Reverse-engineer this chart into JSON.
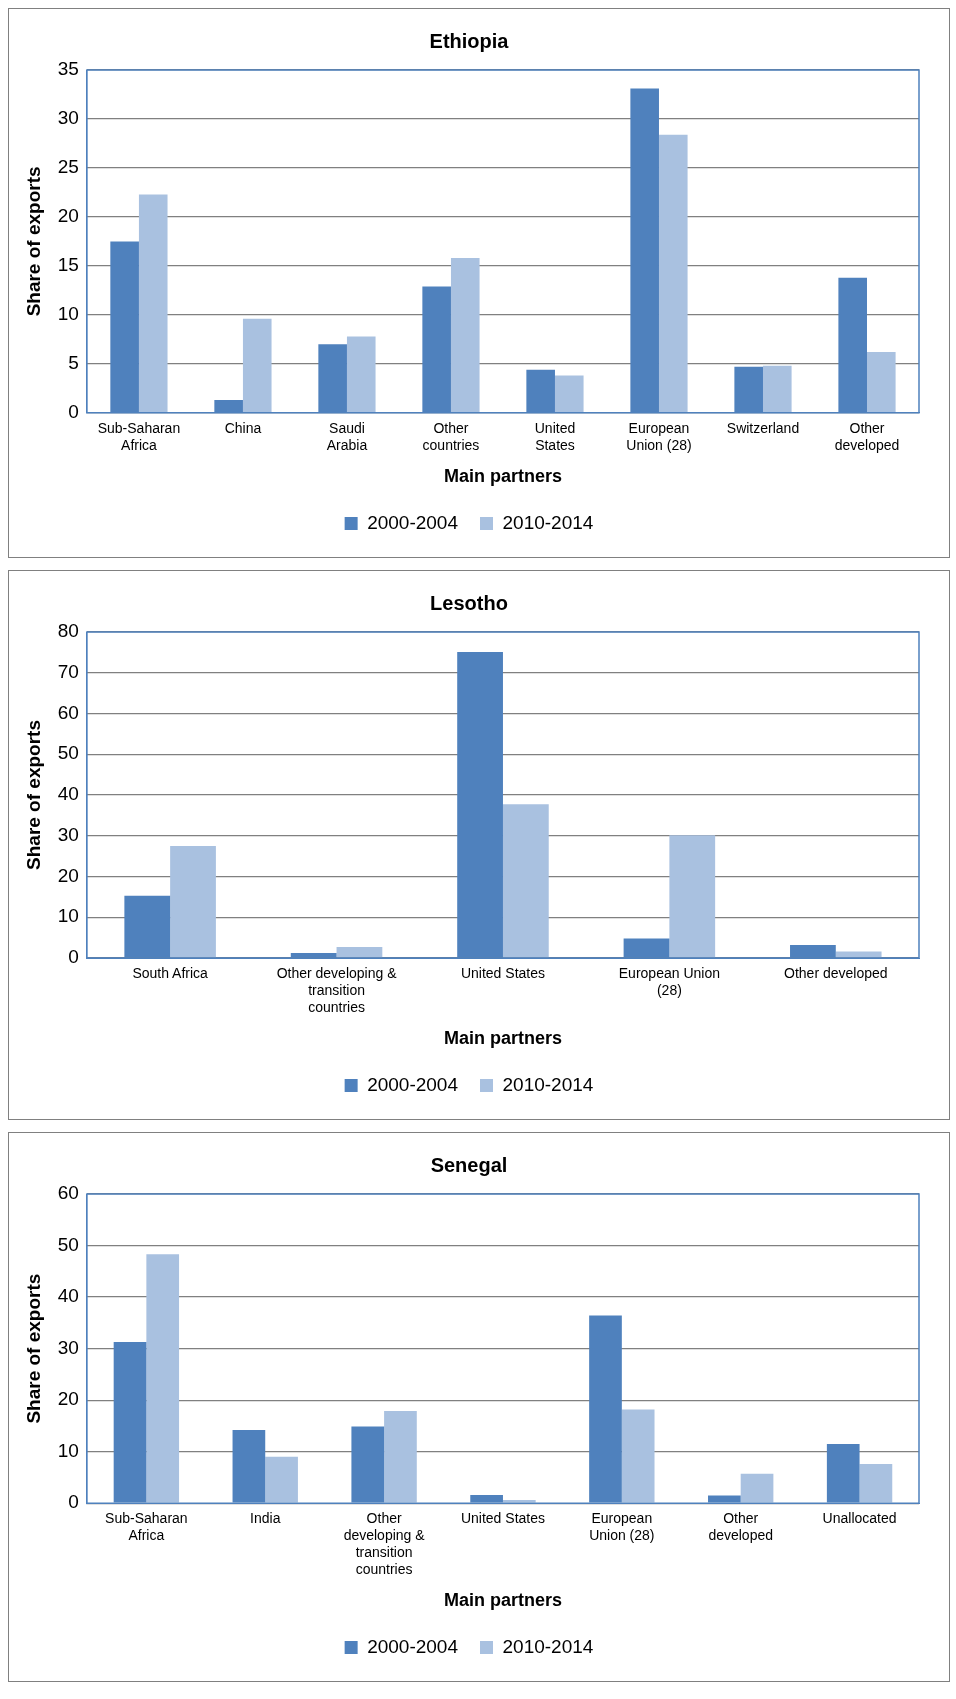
{
  "chart_data": [
    {
      "type": "bar",
      "title": "Ethiopia",
      "xlabel": "Main partners",
      "ylabel": "Share of exports",
      "categories": [
        "Sub-Saharan Africa",
        "China",
        "Saudi Arabia",
        "Other countries",
        "United States",
        "European Union (28)",
        "Switzerland",
        "Other developed"
      ],
      "ylim": [
        0,
        35
      ],
      "yticks": [
        0,
        5,
        10,
        15,
        20,
        25,
        30,
        35
      ],
      "grid": "y",
      "legend": "bottom",
      "series": [
        {
          "name": "2000-2004",
          "color": "#4f81bd",
          "values": [
            17.5,
            1.3,
            7.0,
            12.9,
            4.4,
            33.1,
            4.7,
            13.8
          ]
        },
        {
          "name": "2010-2014",
          "color": "#a9c1e0",
          "values": [
            22.3,
            9.6,
            7.8,
            15.8,
            3.8,
            28.4,
            4.8,
            6.2
          ]
        }
      ]
    },
    {
      "type": "bar",
      "title": "Lesotho",
      "xlabel": "Main partners",
      "ylabel": "Share of exports",
      "categories": [
        "South Africa",
        "Other developing & transition countries",
        "United States",
        "European Union (28)",
        "Other developed"
      ],
      "ylim": [
        0,
        80
      ],
      "yticks": [
        0,
        10,
        20,
        30,
        40,
        50,
        60,
        70,
        80
      ],
      "grid": "y",
      "legend": "bottom",
      "series": [
        {
          "name": "2000-2004",
          "color": "#4f81bd",
          "values": [
            15.3,
            1.2,
            75.1,
            4.8,
            3.2
          ]
        },
        {
          "name": "2010-2014",
          "color": "#a9c1e0",
          "values": [
            27.5,
            2.7,
            37.7,
            30.1,
            1.6
          ]
        }
      ]
    },
    {
      "type": "bar",
      "title": "Senegal",
      "xlabel": "Main partners",
      "ylabel": "Share of exports",
      "categories": [
        "Sub-Saharan Africa",
        "India",
        "Other developing & transition countries",
        "United States",
        "European Union (28)",
        "Other developed",
        "Unallocated"
      ],
      "ylim": [
        0,
        60
      ],
      "yticks": [
        0,
        10,
        20,
        30,
        40,
        50,
        60
      ],
      "grid": "y",
      "legend": "bottom",
      "series": [
        {
          "name": "2000-2004",
          "color": "#4f81bd",
          "values": [
            31.3,
            14.2,
            14.9,
            1.6,
            36.4,
            1.5,
            11.5
          ]
        },
        {
          "name": "2010-2014",
          "color": "#a9c1e0",
          "values": [
            48.3,
            9.0,
            17.9,
            0.6,
            18.2,
            5.7,
            7.6
          ]
        }
      ]
    }
  ]
}
